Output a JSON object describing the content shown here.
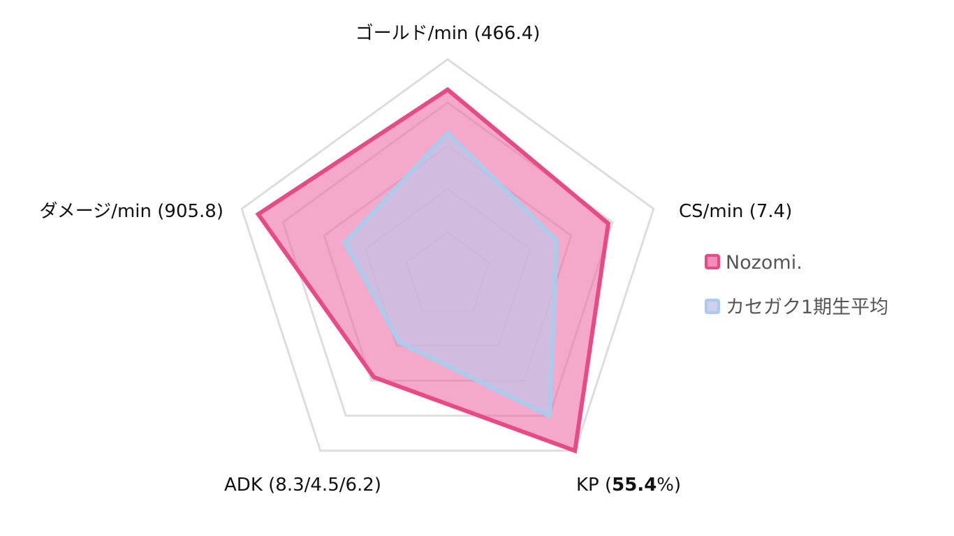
{
  "chart_data": {
    "type": "radar",
    "axes": [
      {
        "id": "gold",
        "label": "ゴールド/min (466.4)"
      },
      {
        "id": "cs",
        "label": "CS/min (7.4)"
      },
      {
        "id": "kp",
        "prefix": "KP (",
        "value_text": "55.4",
        "suffix": "%)"
      },
      {
        "id": "adk",
        "label": "ADK (8.3/4.5/6.2)"
      },
      {
        "id": "damage",
        "label": "ダメージ/min (905.8)"
      }
    ],
    "range": [
      0,
      1
    ],
    "grid_levels": [
      0.2,
      0.4,
      0.6,
      0.8,
      1.0
    ],
    "series": [
      {
        "name": "Nozomi.",
        "values": [
          0.86,
          0.78,
          1.0,
          0.58,
          0.92
        ],
        "stroke": "#e84a86",
        "fill": "#ef6fa6",
        "fill_opacity": 0.6
      },
      {
        "name": "カセガク1期生平均",
        "values": [
          0.66,
          0.53,
          0.8,
          0.38,
          0.5
        ],
        "stroke": "#a9cbec",
        "fill": "#c2c5e8",
        "fill_opacity": 0.7
      }
    ],
    "grid_color": "#dddddd",
    "legend_position": "right"
  }
}
